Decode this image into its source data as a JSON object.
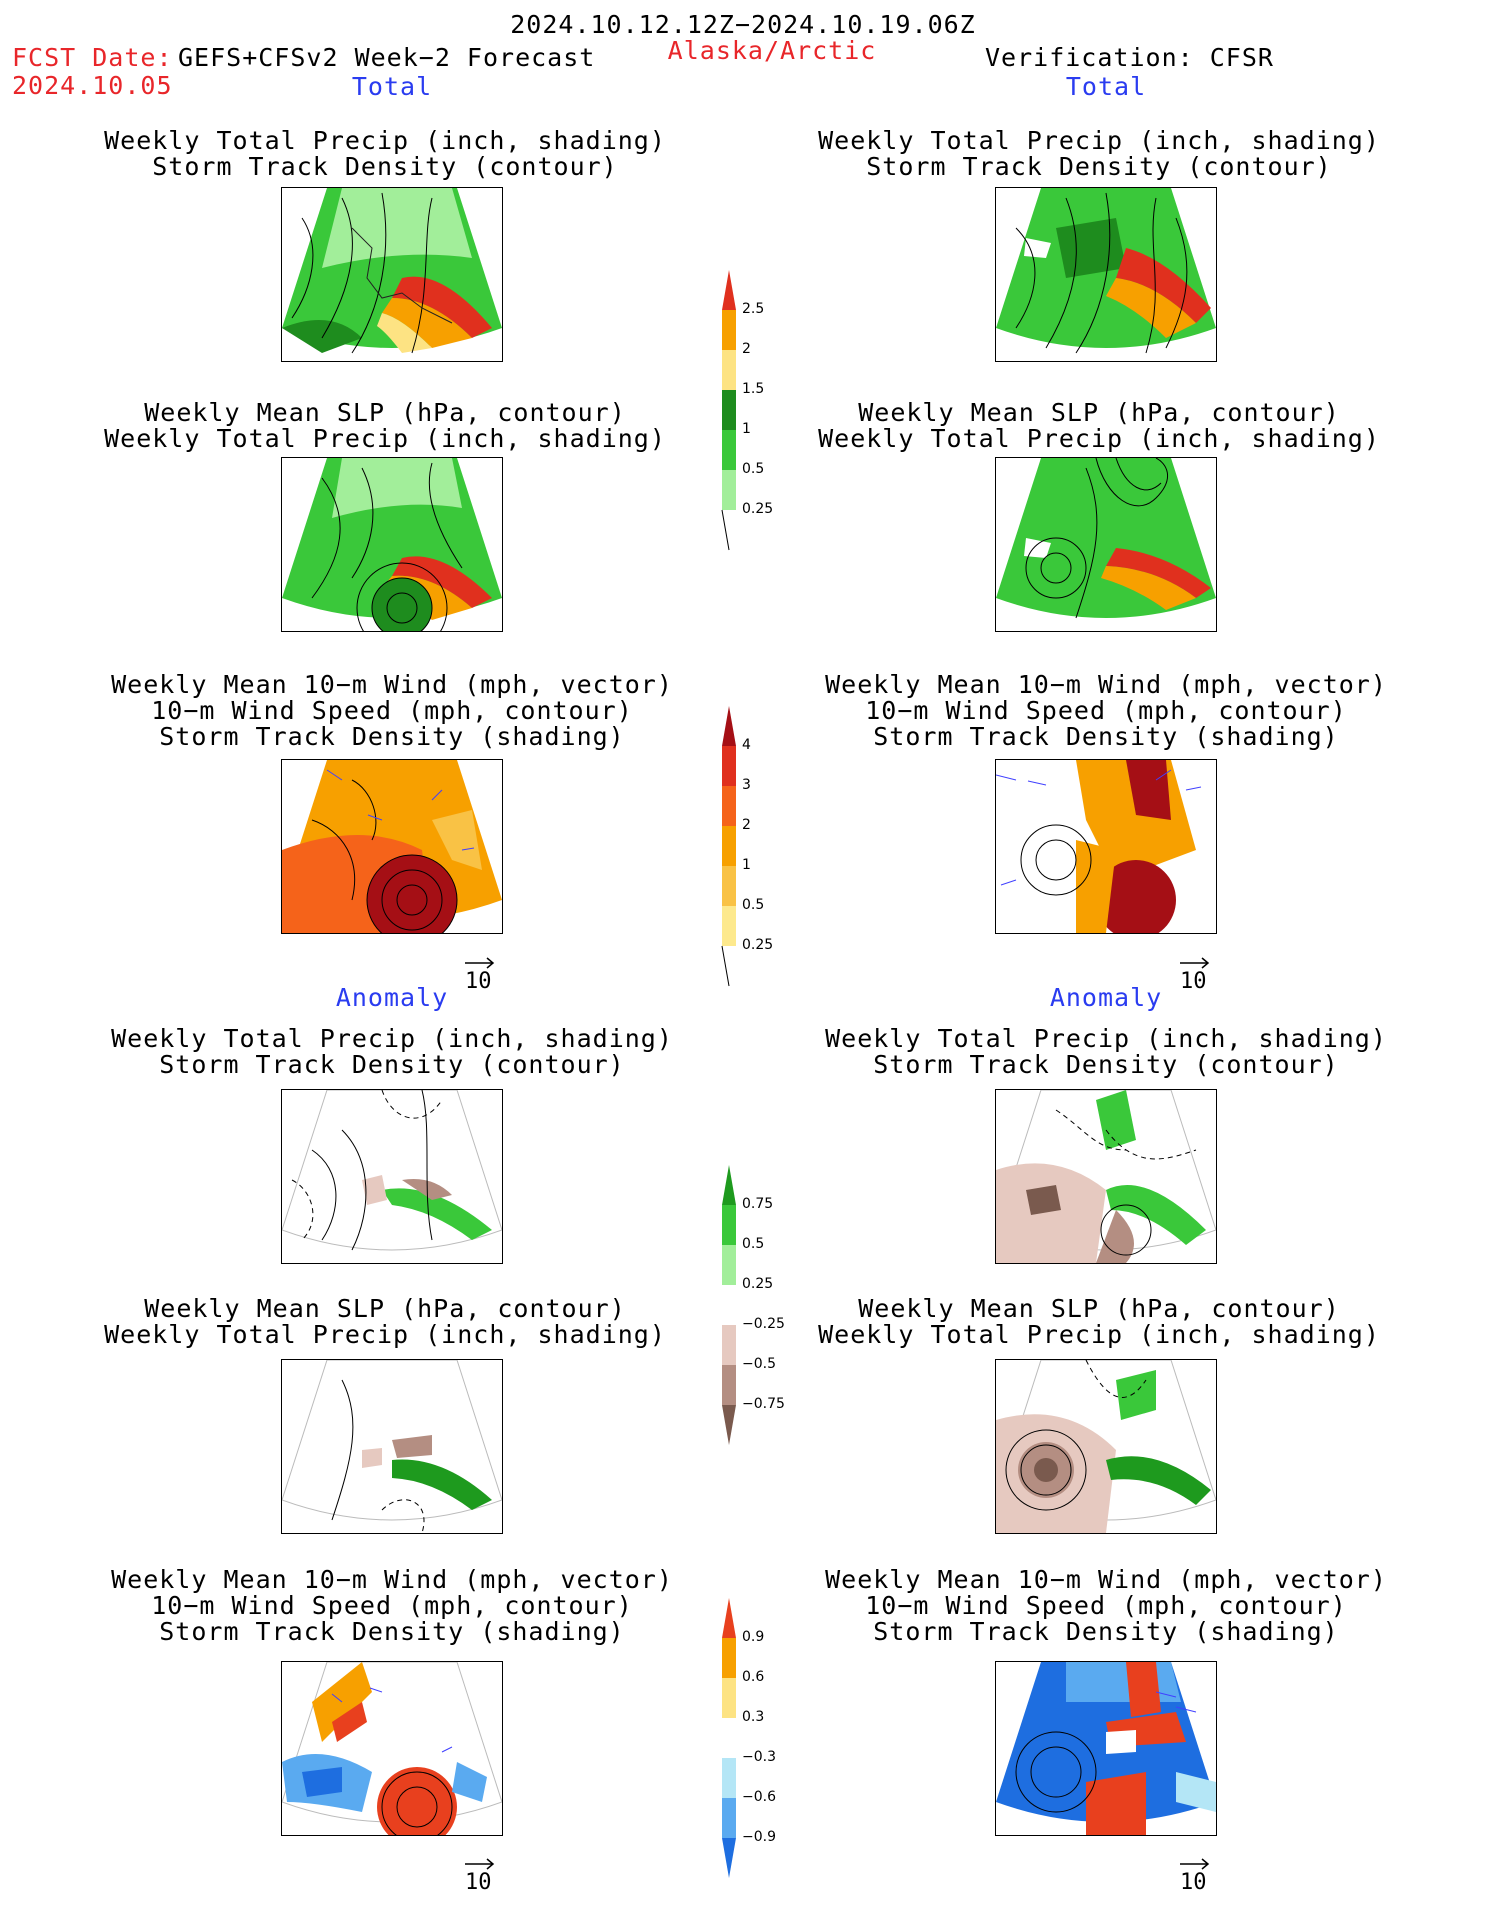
{
  "header": {
    "period": "2024.10.12.12Z−2024.10.19.06Z",
    "fcst_label": "FCST Date:",
    "fcst_model": "GEFS+CFSv2 Week−2 Forecast",
    "fcst_date": "2024.10.05",
    "region": "Alaska/Arctic",
    "verification": "Verification: CFSR"
  },
  "sections": {
    "total": "Total",
    "anomaly": "Anomaly"
  },
  "titles": {
    "precip_track": "Weekly Total Precip (inch, shading)\nStorm Track Density (contour)",
    "slp_precip": "Weekly Mean SLP (hPa, contour)\nWeekly Total Precip (inch, shading)",
    "wind_track": "Weekly Mean 10−m Wind (mph, vector)\n10−m Wind Speed (mph, contour)\nStorm Track Density (shading)"
  },
  "vector_ref": "10",
  "colorbars": {
    "precip_total": {
      "labels": [
        "2.5",
        "2",
        "1.5",
        "1",
        "0.5",
        "0.25"
      ],
      "colors": [
        "#e0301e",
        "#f7a000",
        "#fde383",
        "#1e8c1e",
        "#3ac83a",
        "#a2ee9a"
      ]
    },
    "track_total": {
      "labels": [
        "4",
        "3",
        "2",
        "1",
        "0.5",
        "0.25"
      ],
      "colors": [
        "#a50f15",
        "#e0301e",
        "#f5631a",
        "#f7a000",
        "#f9c245",
        "#fde98d"
      ]
    },
    "precip_anom": {
      "labels": [
        "0.75",
        "0.5",
        "0.25",
        "−0.25",
        "−0.5",
        "−0.75"
      ],
      "colors": [
        "#1e9a1e",
        "#3ac83a",
        "#a2ee9a",
        "#ffffff",
        "#e6c9c0",
        "#b48e82",
        "#7a5a4e"
      ]
    },
    "track_anom": {
      "labels": [
        "0.9",
        "0.6",
        "0.3",
        "−0.3",
        "−0.6",
        "−0.9"
      ],
      "colors": [
        "#e8401e",
        "#f7a000",
        "#fde383",
        "#ffffff",
        "#b4e6f6",
        "#5aaaf0",
        "#1e6ee0"
      ]
    }
  }
}
